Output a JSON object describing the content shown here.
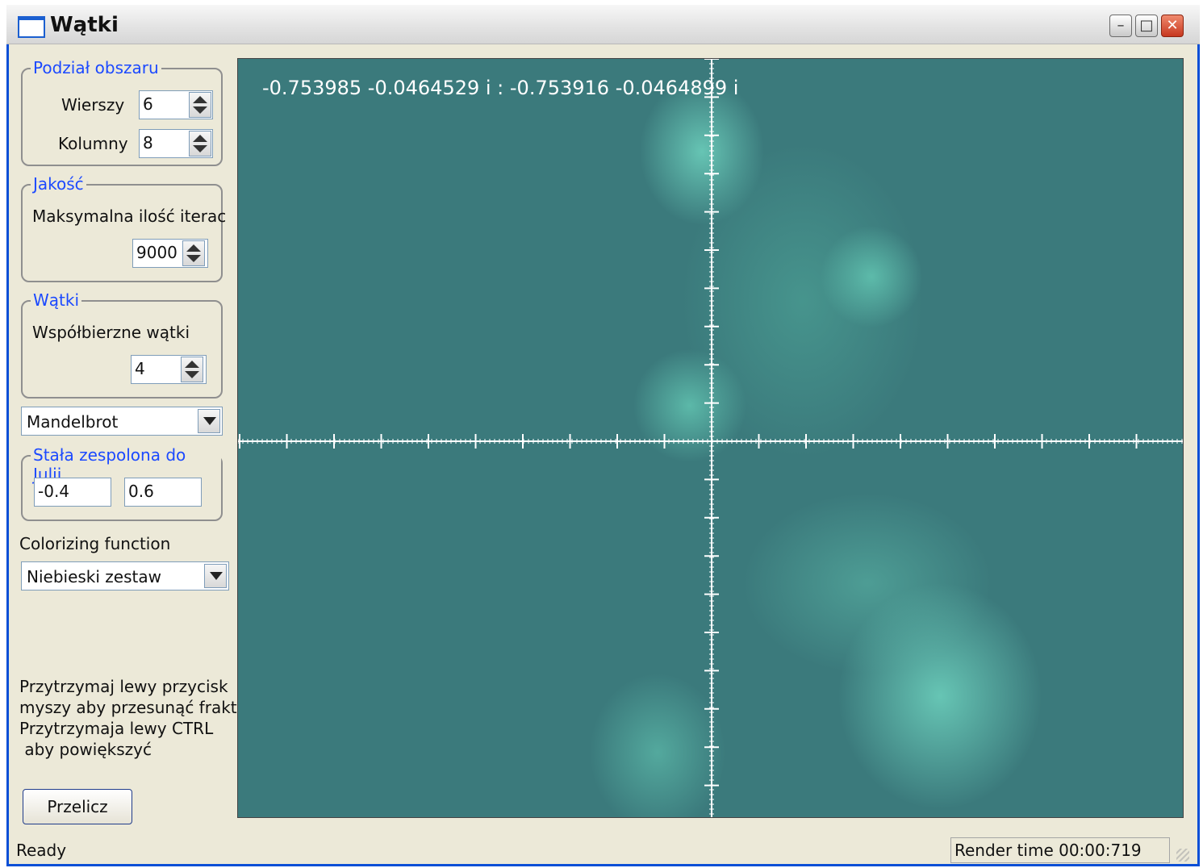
{
  "window": {
    "title": "Wątki",
    "controls": {
      "minimize": "–",
      "maximize": "□",
      "close": "✕"
    }
  },
  "division": {
    "legend": "Podział obszaru",
    "rows_label": "Wierszy",
    "rows_value": "6",
    "cols_label": "Kolumny",
    "cols_value": "8"
  },
  "quality": {
    "legend": "Jakość",
    "iterations_label": "Maksymalna ilość iterac",
    "iterations_value": "9000"
  },
  "threads": {
    "legend": "Wątki",
    "concurrent_label": "Współbierzne wątki",
    "concurrent_value": "4"
  },
  "fractal_type": {
    "selected": "Mandelbrot"
  },
  "julia": {
    "legend": "Stała zespolona do Julii",
    "real": "-0.4",
    "imag": "0.6"
  },
  "colorizing": {
    "label": "Colorizing function",
    "selected": "Niebieski zestaw"
  },
  "help_text": [
    "Przytrzymaj lewy przycisk",
    "myszy aby przesunąć frakt",
    "Przytrzymaja lewy  CTRL",
    " aby powiększyć"
  ],
  "recalc_button": "Przelicz",
  "viewport": {
    "coords": "-0.753985 -0.0464529 i : -0.753916 -0.0464899 i",
    "colors": {
      "background": "#3b7a7c",
      "fractal": "#6ccbb6",
      "axes": "#ffffff"
    }
  },
  "status": {
    "left": "Ready",
    "render_time": "Render time 00:00:719"
  },
  "icons": [
    "app-window-icon",
    "minimize-icon",
    "maximize-icon",
    "close-icon",
    "spin-up-icon",
    "spin-down-icon",
    "chevron-down-icon",
    "resize-grip-icon"
  ]
}
